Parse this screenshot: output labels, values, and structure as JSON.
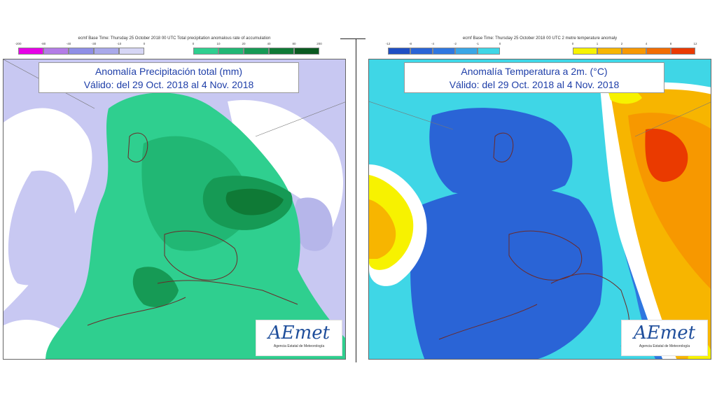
{
  "left": {
    "header": "ecmf  Base Time: Thursday 25 October 2018 00 UTC Total precipitation anomalous rate of accumulation",
    "title_line1": "Anomalía Precipitación total (mm)",
    "title_line2": "Válido: del 29 Oct. 2018 al 4 Nov. 2018",
    "legend_negative": {
      "ticks": [
        "-200",
        "-80",
        "-40",
        "-30",
        "-10",
        "0"
      ],
      "colors": [
        "#e600e6",
        "#b37ce6",
        "#8f8fe6",
        "#a9a9ea",
        "#d6d6f5"
      ]
    },
    "legend_positive": {
      "ticks": [
        "0",
        "10",
        "20",
        "40",
        "80",
        "200"
      ],
      "colors": [
        "#2fcf8f",
        "#21b774",
        "#169a55",
        "#0f7a36",
        "#0a5a20"
      ]
    }
  },
  "right": {
    "header": "ecmf  Base Time: Thursday 25 October 2018 00 UTC 2 metre temperature anomaly",
    "title_line1": "Anomalía Temperatura a 2m. (°C)",
    "title_line2": "Válido: del 29 Oct. 2018 al 4 Nov. 2018",
    "legend_negative": {
      "ticks": [
        "-12",
        "-8",
        "-4",
        "-2",
        "-1",
        "0"
      ],
      "colors": [
        "#1f4fc4",
        "#2a64d6",
        "#2f77e0",
        "#3aa6e6",
        "#3fd6e6"
      ]
    },
    "legend_positive": {
      "ticks": [
        "0",
        "1",
        "2",
        "4",
        "8",
        "12"
      ],
      "colors": [
        "#f7f200",
        "#f7b500",
        "#f79800",
        "#f26d00",
        "#ea3a00"
      ]
    }
  },
  "logo": {
    "name": "AEmet",
    "subtitle": "Agencia Estatal de Meteorología"
  }
}
